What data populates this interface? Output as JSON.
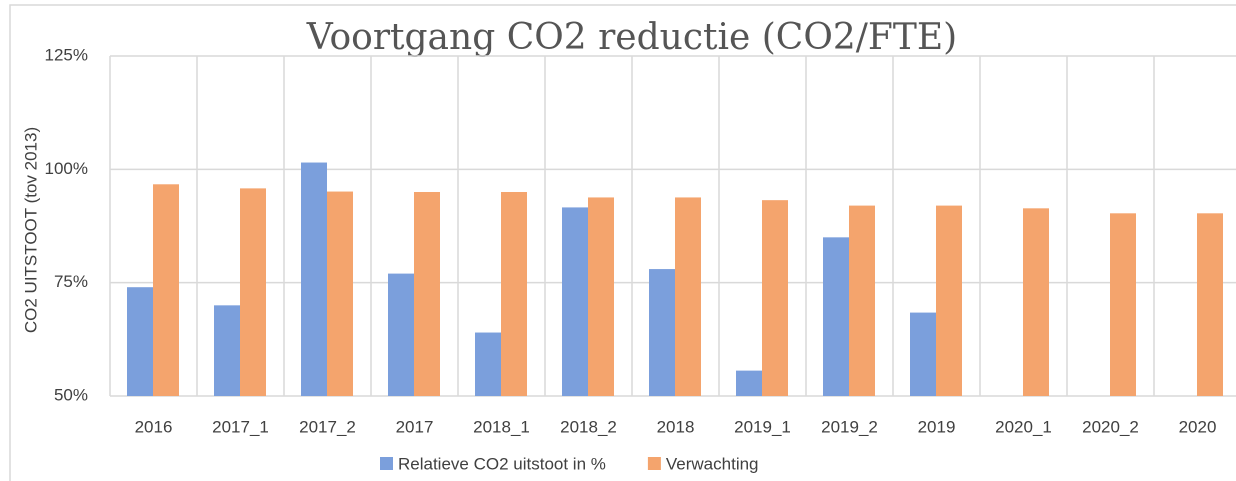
{
  "chart_data": {
    "type": "bar",
    "title": "Voortgang CO2 reductie (CO2/FTE)",
    "y_label": "CO2 UITSTOOT (tov 2013)",
    "categories": [
      "2016",
      "2017_1",
      "2017_2",
      "2017",
      "2018_1",
      "2018_2",
      "2018",
      "2019_1",
      "2019_2",
      "2019",
      "2020_1",
      "2020_2",
      "2020"
    ],
    "series": [
      {
        "name": "Relatieve CO2 uitstoot in %",
        "color": "#7b9fdc",
        "values": [
          74,
          70,
          101.5,
          77,
          64,
          91.6,
          78,
          55.6,
          85,
          68.4,
          null,
          null,
          null
        ]
      },
      {
        "name": "Verwachting",
        "color": "#f4a46d",
        "values": [
          96.7,
          95.8,
          95.1,
          95,
          95,
          93.8,
          93.8,
          93.2,
          92,
          92,
          91.4,
          90.3,
          90.3
        ]
      }
    ],
    "ylim": [
      50,
      125
    ],
    "yticks": [
      {
        "value": 50,
        "label": "50%"
      },
      {
        "value": 75,
        "label": "75%"
      },
      {
        "value": 100,
        "label": "100%"
      },
      {
        "value": 125,
        "label": "125%"
      }
    ],
    "grid": true,
    "legend": "bottom"
  }
}
